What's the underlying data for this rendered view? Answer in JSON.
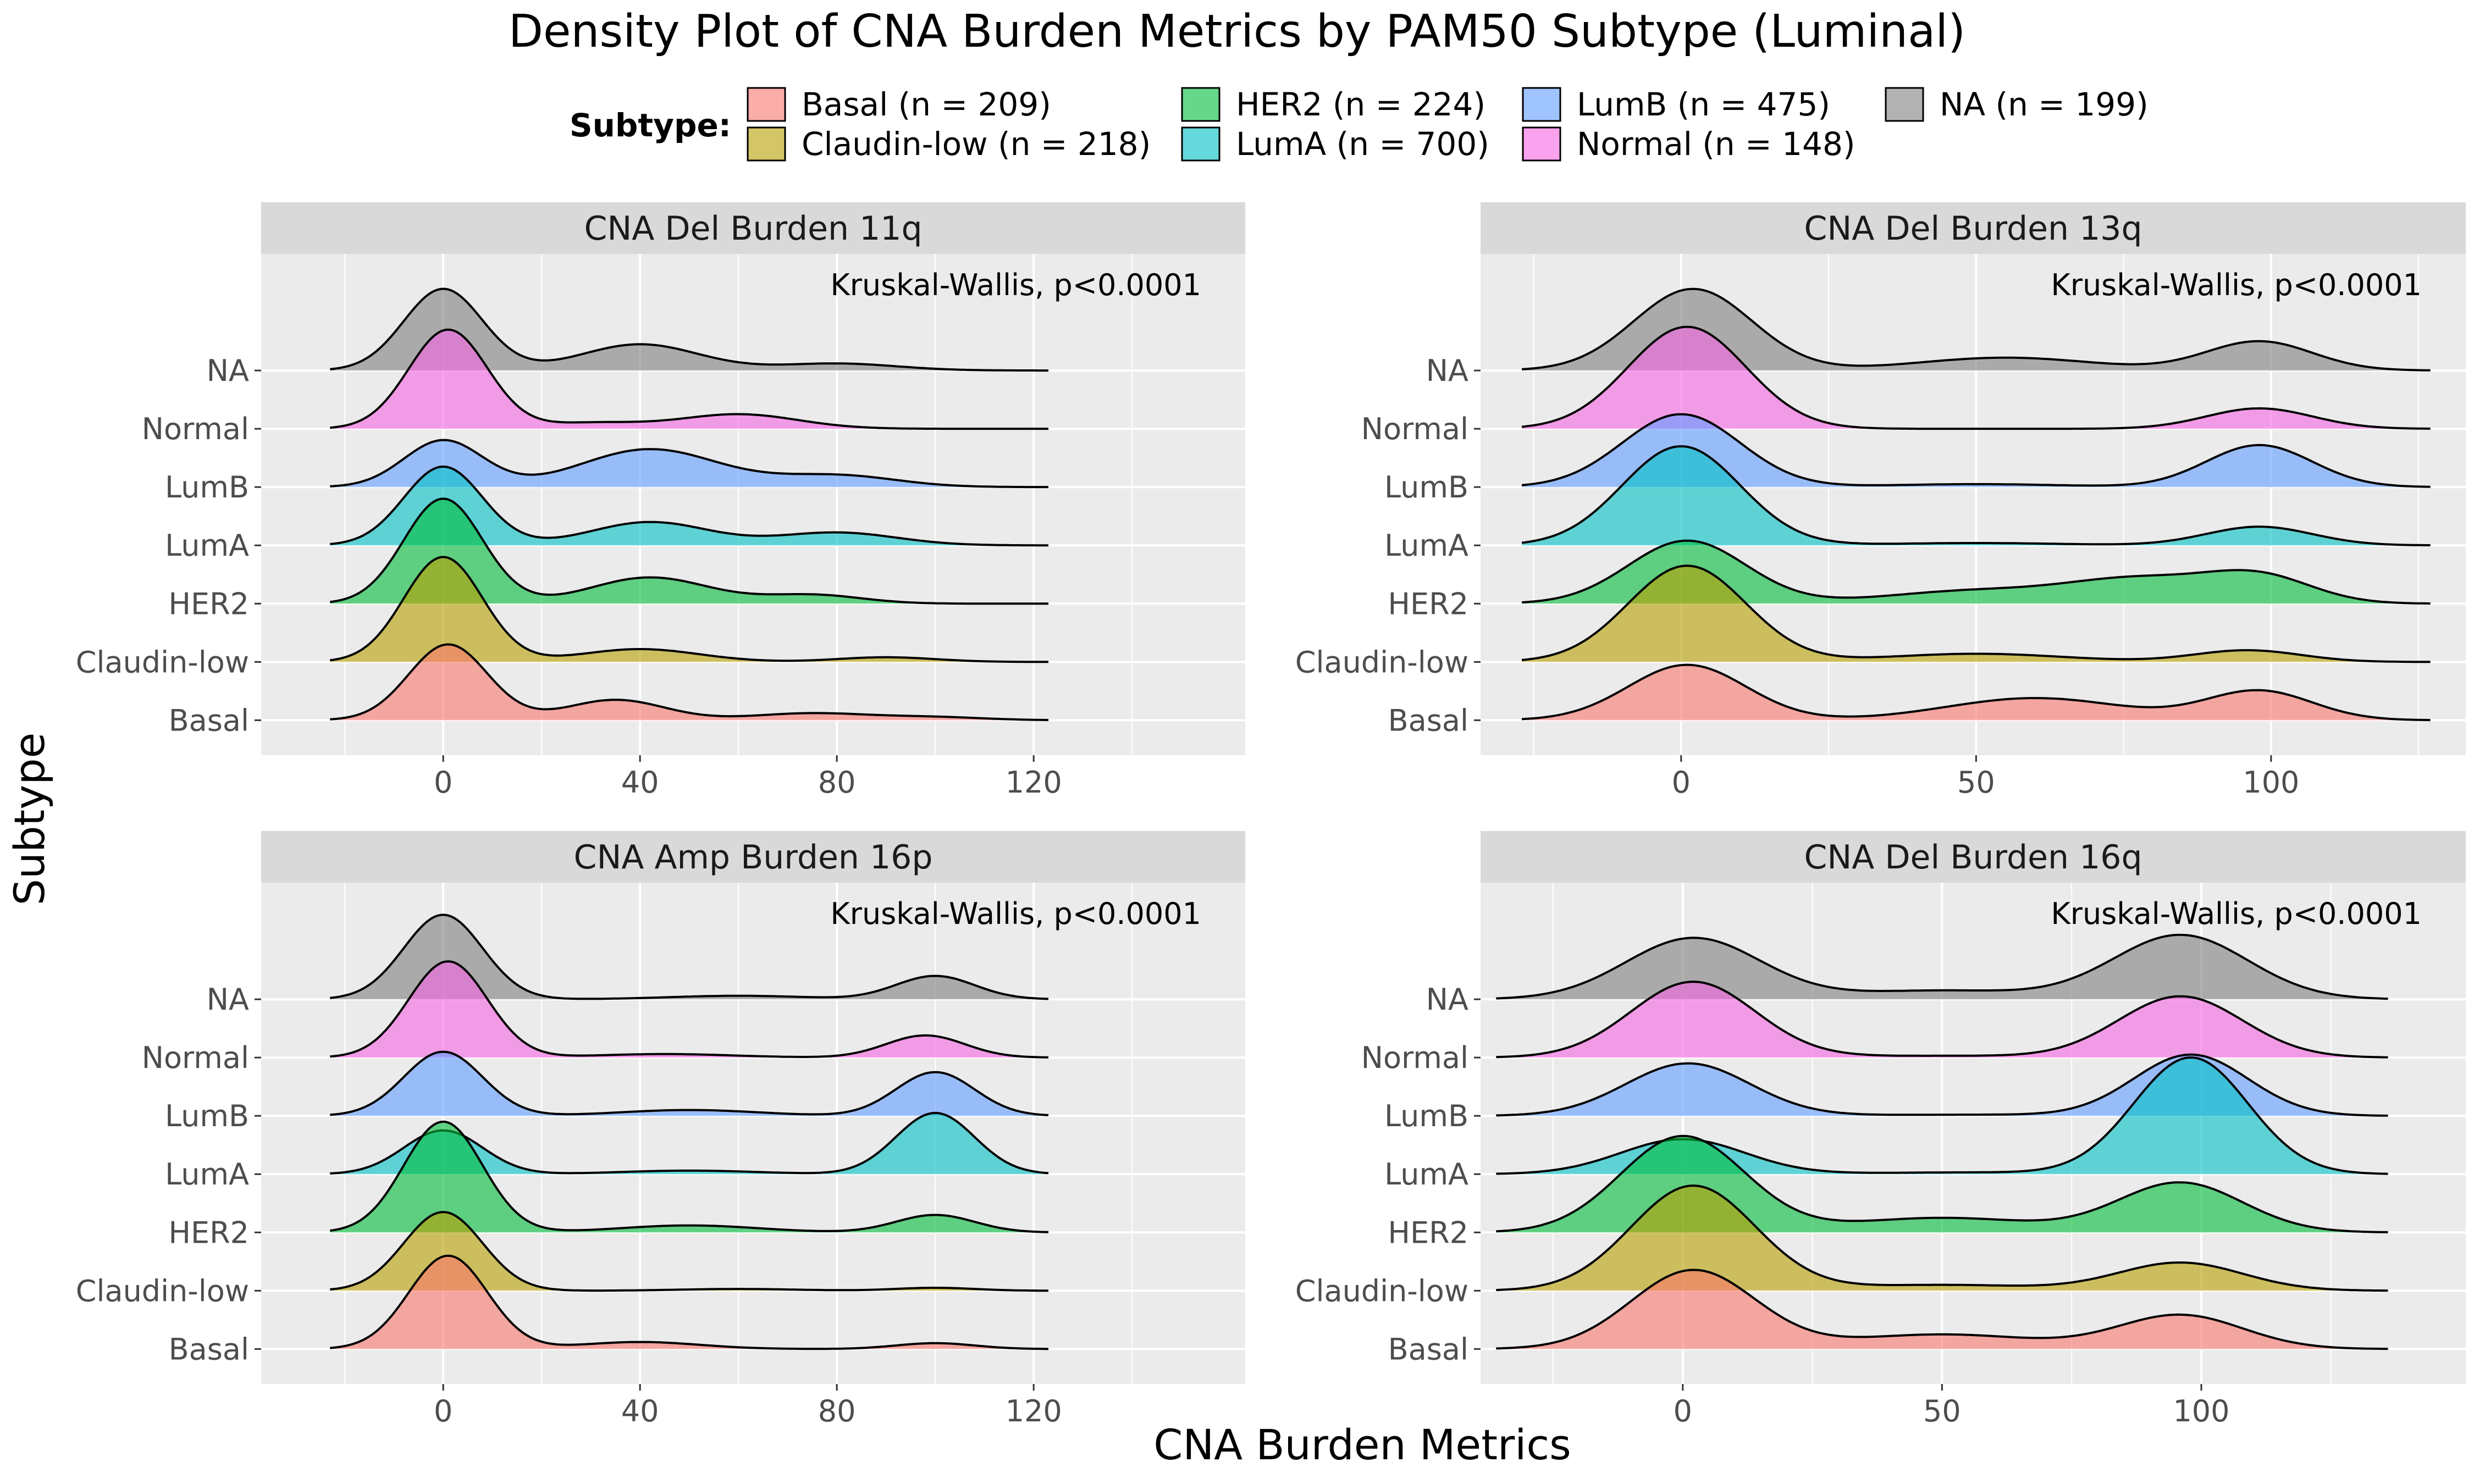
{
  "title": "Density Plot of CNA Burden Metrics by PAM50 Subtype (Luminal)",
  "legend": {
    "title": "Subtype:",
    "items": [
      {
        "label": "Basal  (n = 209)",
        "color": "#F8766D"
      },
      {
        "label": "Claudin-low  (n = 218)",
        "color": "#B79F00"
      },
      {
        "label": "HER2  (n = 224)",
        "color": "#00BA38"
      },
      {
        "label": "LumA  (n = 700)",
        "color": "#00BFC4"
      },
      {
        "label": "LumB  (n = 475)",
        "color": "#619CFF"
      },
      {
        "label": "Normal  (n = 148)",
        "color": "#F564E3"
      },
      {
        "label": "NA  (n = 199)",
        "color": "#7F7F7F"
      }
    ]
  },
  "axis": {
    "x_title": "CNA Burden Metrics",
    "y_title": "Subtype"
  },
  "chart_data": [
    {
      "type": "area",
      "title": "CNA Del Burden 11q",
      "annotation": "Kruskal-Wallis, p<0.0001",
      "xlim": [
        -37,
        163
      ],
      "x_ticks": [
        0,
        40,
        80,
        120
      ],
      "categories": [
        "Basal",
        "Claudin-low",
        "HER2",
        "LumA",
        "LumB",
        "Normal",
        "NA"
      ],
      "curve_range": [
        -23,
        123
      ],
      "series": [
        {
          "name": "Basal",
          "color": "#F8766D",
          "peaks": [
            [
              1,
              8,
              1.3
            ],
            [
              35,
              10,
              0.35
            ],
            [
              75,
              12,
              0.12
            ],
            [
              100,
              10,
              0.05
            ]
          ]
        },
        {
          "name": "Claudin-low",
          "color": "#B79F00",
          "peaks": [
            [
              0,
              8,
              1.8
            ],
            [
              40,
              12,
              0.22
            ],
            [
              90,
              10,
              0.08
            ]
          ]
        },
        {
          "name": "HER2",
          "color": "#00BA38",
          "peaks": [
            [
              0,
              8,
              1.8
            ],
            [
              42,
              12,
              0.45
            ],
            [
              75,
              10,
              0.15
            ]
          ]
        },
        {
          "name": "LumA",
          "color": "#00BFC4",
          "peaks": [
            [
              0,
              8,
              1.35
            ],
            [
              42,
              12,
              0.4
            ],
            [
              80,
              12,
              0.22
            ]
          ]
        },
        {
          "name": "LumB",
          "color": "#619CFF",
          "peaks": [
            [
              0,
              8,
              0.8
            ],
            [
              42,
              14,
              0.65
            ],
            [
              80,
              12,
              0.2
            ]
          ]
        },
        {
          "name": "Normal",
          "color": "#F564E3",
          "peaks": [
            [
              1,
              8,
              1.7
            ],
            [
              30,
              10,
              0.1
            ],
            [
              60,
              12,
              0.25
            ]
          ]
        },
        {
          "name": "NA",
          "color": "#7F7F7F",
          "peaks": [
            [
              0,
              8,
              1.4
            ],
            [
              40,
              12,
              0.45
            ],
            [
              80,
              12,
              0.12
            ]
          ]
        }
      ]
    },
    {
      "type": "area",
      "title": "CNA Del Burden 13q",
      "annotation": "Kruskal-Wallis, p<0.0001",
      "xlim": [
        -34,
        133
      ],
      "x_ticks": [
        0,
        50,
        100
      ],
      "categories": [
        "Basal",
        "Claudin-low",
        "HER2",
        "LumA",
        "LumB",
        "Normal",
        "NA"
      ],
      "curve_range": [
        -27,
        127
      ],
      "series": [
        {
          "name": "Basal",
          "color": "#F8766D",
          "peaks": [
            [
              1,
              10,
              0.95
            ],
            [
              60,
              15,
              0.38
            ],
            [
              98,
              9,
              0.5
            ]
          ]
        },
        {
          "name": "Claudin-low",
          "color": "#B79F00",
          "peaks": [
            [
              1,
              10,
              1.65
            ],
            [
              50,
              15,
              0.14
            ],
            [
              96,
              9,
              0.2
            ]
          ]
        },
        {
          "name": "HER2",
          "color": "#00BA38",
          "peaks": [
            [
              1,
              10,
              1.08
            ],
            [
              50,
              15,
              0.22
            ],
            [
              78,
              12,
              0.4
            ],
            [
              98,
              9,
              0.45
            ]
          ]
        },
        {
          "name": "LumA",
          "color": "#00BFC4",
          "peaks": [
            [
              0,
              10,
              1.7
            ],
            [
              50,
              15,
              0.04
            ],
            [
              98,
              9,
              0.32
            ]
          ]
        },
        {
          "name": "LumB",
          "color": "#619CFF",
          "peaks": [
            [
              0,
              10,
              1.25
            ],
            [
              50,
              15,
              0.05
            ],
            [
              98,
              9,
              0.72
            ]
          ]
        },
        {
          "name": "Normal",
          "color": "#F564E3",
          "peaks": [
            [
              1,
              10,
              1.75
            ],
            [
              98,
              9,
              0.35
            ]
          ]
        },
        {
          "name": "NA",
          "color": "#7F7F7F",
          "peaks": [
            [
              2,
              10,
              1.4
            ],
            [
              55,
              15,
              0.22
            ],
            [
              98,
              9,
              0.5
            ]
          ]
        }
      ]
    },
    {
      "type": "area",
      "title": "CNA Amp Burden 16p",
      "annotation": "Kruskal-Wallis, p<0.0001",
      "xlim": [
        -37,
        163
      ],
      "x_ticks": [
        0,
        40,
        80,
        120
      ],
      "categories": [
        "Basal",
        "Claudin-low",
        "HER2",
        "LumA",
        "LumB",
        "Normal",
        "NA"
      ],
      "curve_range": [
        -23,
        123
      ],
      "series": [
        {
          "name": "Basal",
          "color": "#F8766D",
          "peaks": [
            [
              1,
              8,
              1.6
            ],
            [
              40,
              12,
              0.12
            ],
            [
              100,
              8,
              0.1
            ]
          ]
        },
        {
          "name": "Claudin-low",
          "color": "#B79F00",
          "peaks": [
            [
              0,
              8,
              1.35
            ],
            [
              60,
              12,
              0.03
            ],
            [
              100,
              8,
              0.05
            ]
          ]
        },
        {
          "name": "HER2",
          "color": "#00BA38",
          "peaks": [
            [
              0,
              8,
              1.9
            ],
            [
              50,
              14,
              0.12
            ],
            [
              100,
              8,
              0.3
            ]
          ]
        },
        {
          "name": "LumA",
          "color": "#00BFC4",
          "peaks": [
            [
              0,
              8,
              0.75
            ],
            [
              50,
              14,
              0.06
            ],
            [
              100,
              8,
              1.05
            ]
          ]
        },
        {
          "name": "LumB",
          "color": "#619CFF",
          "peaks": [
            [
              0,
              8,
              1.1
            ],
            [
              50,
              14,
              0.1
            ],
            [
              100,
              8,
              0.75
            ]
          ]
        },
        {
          "name": "Normal",
          "color": "#F564E3",
          "peaks": [
            [
              1,
              8,
              1.65
            ],
            [
              45,
              14,
              0.06
            ],
            [
              98,
              8,
              0.38
            ]
          ]
        },
        {
          "name": "NA",
          "color": "#7F7F7F",
          "peaks": [
            [
              0,
              8,
              1.45
            ],
            [
              60,
              14,
              0.06
            ],
            [
              100,
              8,
              0.4
            ]
          ]
        }
      ]
    },
    {
      "type": "area",
      "title": "CNA Del Burden 16q",
      "annotation": "Kruskal-Wallis, p<0.0001",
      "xlim": [
        -39,
        151
      ],
      "x_ticks": [
        0,
        50,
        100
      ],
      "categories": [
        "Basal",
        "Claudin-low",
        "HER2",
        "LumA",
        "LumB",
        "Normal",
        "NA"
      ],
      "curve_range": [
        -36,
        136
      ],
      "series": [
        {
          "name": "Basal",
          "color": "#F8766D",
          "peaks": [
            [
              2,
              12,
              1.35
            ],
            [
              50,
              18,
              0.25
            ],
            [
              96,
              12,
              0.58
            ]
          ]
        },
        {
          "name": "Claudin-low",
          "color": "#B79F00",
          "peaks": [
            [
              2,
              12,
              1.8
            ],
            [
              50,
              18,
              0.1
            ],
            [
              96,
              12,
              0.48
            ]
          ]
        },
        {
          "name": "HER2",
          "color": "#00BA38",
          "peaks": [
            [
              0,
              12,
              1.65
            ],
            [
              50,
              18,
              0.25
            ],
            [
              96,
              12,
              0.85
            ]
          ]
        },
        {
          "name": "LumA",
          "color": "#00BFC4",
          "peaks": [
            [
              0,
              12,
              0.6
            ],
            [
              55,
              18,
              0.03
            ],
            [
              98,
              11,
              2.0
            ]
          ]
        },
        {
          "name": "LumB",
          "color": "#619CFF",
          "peaks": [
            [
              1,
              12,
              0.9
            ],
            [
              55,
              18,
              0.02
            ],
            [
              98,
              11,
              1.05
            ]
          ]
        },
        {
          "name": "Normal",
          "color": "#F564E3",
          "peaks": [
            [
              2,
              12,
              1.3
            ],
            [
              50,
              18,
              0.03
            ],
            [
              96,
              12,
              1.05
            ]
          ]
        },
        {
          "name": "NA",
          "color": "#7F7F7F",
          "peaks": [
            [
              2,
              13,
              1.05
            ],
            [
              50,
              18,
              0.15
            ],
            [
              96,
              13,
              1.1
            ]
          ]
        }
      ]
    }
  ]
}
